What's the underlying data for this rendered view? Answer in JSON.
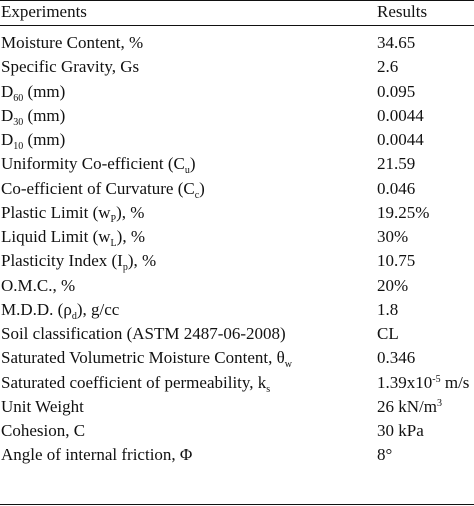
{
  "table": {
    "headers": {
      "experiments": "Experiments",
      "results": "Results"
    },
    "rows": [
      {
        "name": "Moisture Content, %",
        "value": "34.65"
      },
      {
        "name": "Specific Gravity, Gs",
        "value": "2.6"
      },
      {
        "name_pre": "D",
        "name_sub": "60",
        "name_post": " (mm)",
        "value": "0.095"
      },
      {
        "name_pre": "D",
        "name_sub": "30",
        "name_post": " (mm)",
        "value": "0.0044"
      },
      {
        "name_pre": "D",
        "name_sub": "10",
        "name_post": " (mm)",
        "value": "0.0044"
      },
      {
        "name_pre": "Uniformity Co-efficient (C",
        "name_sub": "u",
        "name_post": ")",
        "value": "21.59"
      },
      {
        "name_pre": "Co-efficient of Curvature (C",
        "name_sub": "c",
        "name_post": ")",
        "value": "0.046"
      },
      {
        "name_pre": "Plastic Limit (w",
        "name_sub": "P",
        "name_post": "), %",
        "value": "19.25%"
      },
      {
        "name_pre": "Liquid Limit (w",
        "name_sub": "L",
        "name_post": "), %",
        "value": "30%"
      },
      {
        "name_pre": "Plasticity Index (I",
        "name_sub": "p",
        "name_post": "), %",
        "value": "10.75"
      },
      {
        "name": "O.M.C., %",
        "value": "20%"
      },
      {
        "name_pre": "M.D.D. (ρ",
        "name_sub": "d",
        "name_post": "), g/cc",
        "value": "1.8"
      },
      {
        "name": "Soil classification (ASTM 2487-06-2008)",
        "value": "CL"
      },
      {
        "name_pre": "Saturated Volumetric Moisture Content, θ",
        "name_sub": "w",
        "name_post": "",
        "value": "0.346"
      },
      {
        "name_pre": "Saturated coefficient of permeability, k",
        "name_sub": "s",
        "name_post": "",
        "value_pre": "1.39x10",
        "value_sup": "-5",
        "value_post": " m/s"
      },
      {
        "name": "Unit Weight",
        "value_pre": "26 kN/m",
        "value_sup": "3",
        "value_post": ""
      },
      {
        "name": "Cohesion, C",
        "value": "30 kPa"
      },
      {
        "name": "Angle of internal friction, Φ",
        "value": "8°"
      }
    ]
  }
}
